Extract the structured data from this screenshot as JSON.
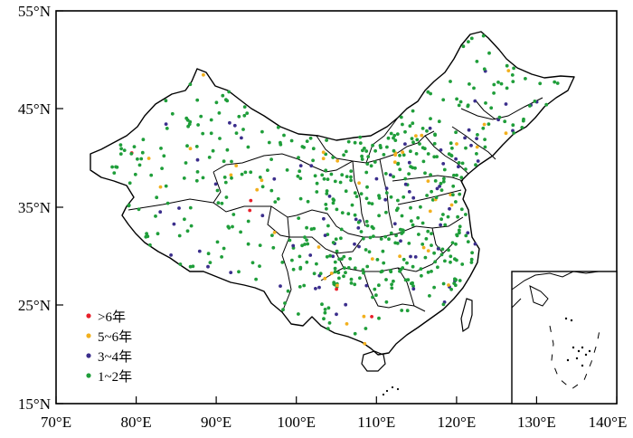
{
  "map": {
    "lat_ticks": [
      "55°N",
      "45°N",
      "35°N",
      "25°N",
      "15°N"
    ],
    "lon_ticks": [
      "70°E",
      "80°E",
      "90°E",
      "100°E",
      "110°E",
      "120°E",
      "130°E",
      "140°E"
    ],
    "extent": {
      "lon": [
        70,
        140
      ],
      "lat": [
        15,
        55
      ]
    }
  },
  "legend": {
    "items": [
      {
        "label": ">6年",
        "color": "#e8202a"
      },
      {
        "label": "5~6年",
        "color": "#f2b01e"
      },
      {
        "label": "3~4年",
        "color": "#3b2e8c"
      },
      {
        "label": "1~2年",
        "color": "#1f9e3a"
      }
    ]
  },
  "colors": {
    "border": "#000000",
    "background": "#ffffff",
    "red": "#e8202a",
    "orange": "#f2b01e",
    "purple": "#3b2e8c",
    "green": "#1f9e3a"
  }
}
